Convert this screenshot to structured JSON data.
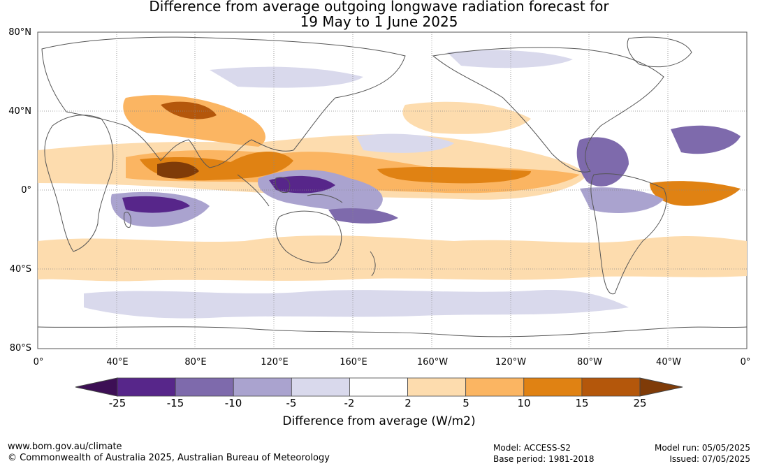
{
  "title_line1": "Difference from average outgoing longwave radiation forecast for",
  "title_line2": "19 May to 1 June 2025",
  "lat_labels": [
    "80°N",
    "40°N",
    "0°",
    "40°S",
    "80°S"
  ],
  "lon_labels": [
    "0°",
    "40°E",
    "80°E",
    "120°E",
    "160°E",
    "160°W",
    "120°W",
    "80°W",
    "40°W",
    "0°"
  ],
  "colorbar": {
    "ticks": [
      "-25",
      "-15",
      "-10",
      "-5",
      "-2",
      "2",
      "5",
      "10",
      "15",
      "25"
    ],
    "colors": [
      "#3d0f55",
      "#57268a",
      "#7e6aac",
      "#aaa3cf",
      "#d9d9ec",
      "#ffffff",
      "#fddcae",
      "#fbb562",
      "#e08213",
      "#b4570b",
      "#7f3b08"
    ],
    "label": "Difference from average (W/m2)"
  },
  "footer": {
    "website": "www.bom.gov.au/climate",
    "copyright": "© Commonwealth of Australia 2025, Australian Bureau of Meteorology",
    "model": "Model: ACCESS-S2",
    "base_period": "Base period: 1981-2018",
    "model_run": "Model run: 05/05/2025",
    "issued": "Issued: 07/05/2025"
  }
}
